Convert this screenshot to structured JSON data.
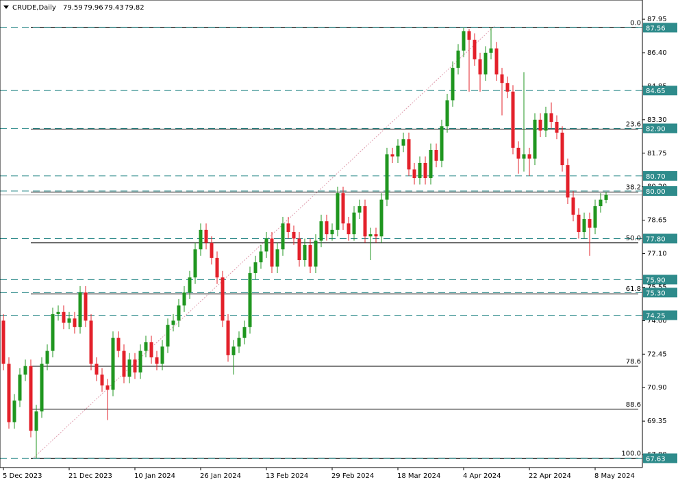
{
  "chart_data": {
    "type": "candlestick",
    "symbol": "CRUDE,Daily",
    "categories": [
      "5 Dec 2023",
      null,
      null,
      null,
      null,
      null,
      null,
      null,
      null,
      null,
      null,
      null,
      "21 Dec 2023",
      null,
      null,
      null,
      null,
      null,
      null,
      null,
      null,
      null,
      null,
      null,
      "10 Jan 2024",
      null,
      null,
      null,
      null,
      null,
      null,
      null,
      null,
      null,
      null,
      null,
      "26 Jan 2024",
      null,
      null,
      null,
      null,
      null,
      null,
      null,
      null,
      null,
      null,
      null,
      "13 Feb 2024",
      null,
      null,
      null,
      null,
      null,
      null,
      null,
      null,
      null,
      null,
      null,
      "29 Feb 2024",
      null,
      null,
      null,
      null,
      null,
      null,
      null,
      null,
      null,
      null,
      null,
      "18 Mar 2024",
      null,
      null,
      null,
      null,
      null,
      null,
      null,
      null,
      null,
      null,
      null,
      "4 Apr 2024",
      null,
      null,
      null,
      null,
      null,
      null,
      null,
      null,
      null,
      null,
      null,
      "22 Apr 2024",
      null,
      null,
      null,
      null,
      null,
      null,
      null,
      null,
      null,
      null,
      null,
      "8 May 2024",
      null,
      null
    ],
    "open": [
      74.0,
      72.0,
      69.3,
      70.3,
      71.5,
      71.9,
      68.9,
      69.8,
      72.0,
      72.6,
      74.3,
      74.4,
      73.9,
      74.1,
      73.7,
      75.3,
      74.0,
      72.0,
      71.5,
      71.0,
      70.8,
      73.2,
      72.6,
      71.4,
      72.2,
      71.6,
      72.6,
      73.0,
      72.3,
      72.0,
      72.8,
      73.8,
      74.0,
      74.7,
      75.3,
      76.0,
      77.3,
      78.2,
      77.6,
      76.9,
      76.0,
      74.0,
      72.4,
      72.8,
      73.2,
      73.7,
      76.2,
      76.7,
      77.2,
      77.8,
      76.5,
      77.3,
      78.5,
      78.1,
      77.8,
      76.8,
      77.5,
      76.5,
      77.7,
      78.6,
      78.0,
      78.2,
      79.9,
      78.5,
      78.0,
      79.0,
      79.3,
      77.9,
      78.0,
      77.9,
      79.6,
      81.7,
      81.6,
      82.1,
      82.4,
      81.0,
      80.6,
      81.3,
      80.6,
      81.9,
      81.4,
      83.0,
      84.2,
      85.7,
      86.5,
      87.4,
      87.0,
      86.1,
      85.4,
      86.4,
      86.6,
      85.4,
      85.0,
      84.6,
      82.0,
      81.5,
      81.7,
      81.5,
      83.3,
      82.8,
      83.6,
      83.2,
      82.7,
      81.2,
      79.7,
      78.9,
      78.1,
      78.7,
      78.3,
      79.3,
      79.59
    ],
    "high": [
      74.3,
      72.3,
      70.6,
      71.8,
      72.2,
      72.2,
      70.1,
      72.3,
      72.9,
      74.6,
      74.7,
      74.7,
      74.4,
      74.4,
      75.6,
      75.6,
      74.3,
      72.3,
      71.8,
      71.3,
      73.5,
      73.5,
      72.9,
      72.5,
      72.5,
      72.9,
      73.3,
      73.3,
      72.6,
      73.1,
      74.1,
      74.3,
      75.0,
      75.6,
      76.3,
      77.6,
      78.5,
      78.5,
      77.9,
      77.2,
      76.3,
      74.3,
      73.1,
      73.5,
      74.0,
      76.5,
      77.0,
      77.5,
      78.1,
      78.1,
      77.6,
      78.8,
      78.8,
      78.4,
      78.1,
      77.8,
      77.8,
      78.0,
      78.9,
      78.9,
      78.5,
      80.2,
      80.2,
      78.8,
      79.3,
      79.6,
      79.6,
      78.3,
      78.3,
      79.9,
      82.0,
      82.0,
      82.4,
      82.7,
      82.7,
      81.3,
      81.6,
      81.6,
      82.2,
      82.2,
      83.3,
      84.5,
      86.0,
      86.8,
      87.56,
      87.5,
      87.3,
      86.4,
      86.7,
      87.56,
      86.9,
      85.7,
      85.3,
      84.9,
      82.3,
      85.5,
      82.0,
      83.6,
      83.6,
      83.9,
      84.1,
      83.5,
      83.0,
      81.5,
      80.0,
      79.2,
      79.0,
      79.0,
      79.6,
      79.9,
      79.96
    ],
    "low": [
      71.7,
      69.0,
      69.0,
      70.0,
      71.2,
      68.6,
      67.63,
      69.5,
      71.7,
      72.3,
      74.0,
      73.6,
      73.6,
      73.4,
      73.4,
      73.7,
      71.7,
      71.2,
      70.7,
      69.4,
      70.5,
      72.3,
      71.1,
      71.1,
      71.3,
      71.3,
      72.3,
      72.0,
      71.7,
      71.7,
      72.5,
      73.5,
      73.7,
      74.4,
      75.0,
      75.7,
      77.0,
      77.3,
      76.6,
      75.7,
      73.7,
      72.1,
      71.5,
      72.5,
      72.9,
      73.4,
      75.9,
      76.4,
      76.9,
      76.2,
      76.2,
      77.0,
      77.8,
      77.5,
      76.5,
      76.5,
      76.2,
      76.2,
      77.4,
      77.7,
      77.7,
      77.9,
      78.2,
      77.7,
      77.7,
      78.7,
      77.6,
      76.8,
      77.6,
      77.6,
      79.3,
      81.3,
      81.3,
      81.8,
      80.7,
      80.3,
      80.3,
      80.3,
      80.3,
      81.1,
      81.1,
      82.7,
      83.9,
      85.4,
      86.2,
      84.6,
      85.8,
      84.6,
      85.1,
      86.1,
      85.1,
      83.5,
      84.3,
      81.7,
      80.8,
      80.9,
      80.7,
      81.2,
      82.5,
      82.5,
      82.9,
      82.4,
      80.9,
      79.4,
      78.6,
      77.8,
      77.8,
      77.0,
      78.0,
      79.0,
      79.43
    ],
    "close": [
      72.0,
      69.3,
      70.3,
      71.5,
      71.9,
      68.9,
      69.8,
      72.0,
      72.6,
      74.3,
      74.4,
      73.9,
      74.1,
      73.7,
      75.3,
      74.0,
      72.0,
      71.5,
      71.0,
      70.8,
      73.2,
      72.6,
      71.4,
      72.2,
      71.6,
      72.6,
      73.0,
      72.3,
      72.0,
      72.8,
      73.8,
      74.0,
      74.7,
      75.3,
      76.0,
      77.3,
      78.2,
      77.6,
      76.9,
      76.0,
      74.0,
      72.4,
      72.8,
      73.2,
      73.7,
      76.2,
      76.7,
      77.2,
      77.8,
      76.5,
      77.3,
      78.5,
      78.1,
      77.8,
      76.8,
      77.5,
      76.5,
      77.7,
      78.6,
      78.0,
      78.2,
      79.9,
      78.5,
      78.0,
      79.0,
      79.3,
      77.9,
      78.0,
      77.9,
      79.6,
      81.7,
      81.6,
      82.1,
      82.4,
      81.0,
      80.6,
      81.3,
      80.6,
      81.9,
      81.4,
      83.0,
      84.2,
      85.7,
      86.5,
      87.4,
      87.0,
      86.1,
      85.4,
      86.4,
      86.6,
      85.4,
      85.0,
      84.6,
      82.0,
      81.5,
      81.7,
      81.5,
      83.3,
      82.8,
      83.6,
      83.2,
      82.7,
      81.2,
      79.7,
      78.9,
      78.1,
      78.7,
      78.3,
      79.3,
      79.6,
      79.82
    ],
    "up_color": "#1f961f",
    "down_color": "#e3202a",
    "level_color": "#2e8b8b",
    "ylim": [
      67.2,
      88.84
    ],
    "yticks": [
      87.95,
      {
        "value": 86.4,
        "label": "86.40"
      },
      84.85,
      {
        "value": 83.3,
        "label": "83.30"
      },
      81.75,
      {
        "value": 80.2,
        "label": "80.20"
      },
      78.65,
      {
        "value": 77.1,
        "label": "77.10"
      },
      75.55,
      {
        "value": 74,
        "label": "74.00"
      },
      72.45,
      {
        "value": 70.9,
        "label": "70.90"
      },
      69.35,
      {
        "value": 67.8,
        "label": "67.80"
      }
    ],
    "levels": [
      87.56,
      84.65,
      {
        "value": 82.9,
        "label": "82.90"
      },
      {
        "value": 80.7,
        "label": "80.70"
      },
      {
        "value": 80,
        "label": "80.00"
      },
      {
        "value": 77.8,
        "label": "77.80"
      },
      {
        "value": 75.9,
        "label": "75.90"
      },
      {
        "value": 75.3,
        "label": "75.30"
      },
      74.25,
      67.63
    ],
    "fib_levels": [
      {
        "label": "0.0",
        "price": 87.56
      },
      {
        "label": "23.6",
        "price": 82.86
      },
      {
        "label": "38.2",
        "price": 79.95
      },
      {
        "label": "50.0",
        "price": 77.6
      },
      {
        "label": "61.8",
        "price": 75.24
      },
      {
        "label": "78.6",
        "price": 71.89
      },
      {
        "label": "88.6",
        "price": 69.9
      },
      {
        "label": "100.0",
        "price": 67.63
      }
    ]
  }
}
